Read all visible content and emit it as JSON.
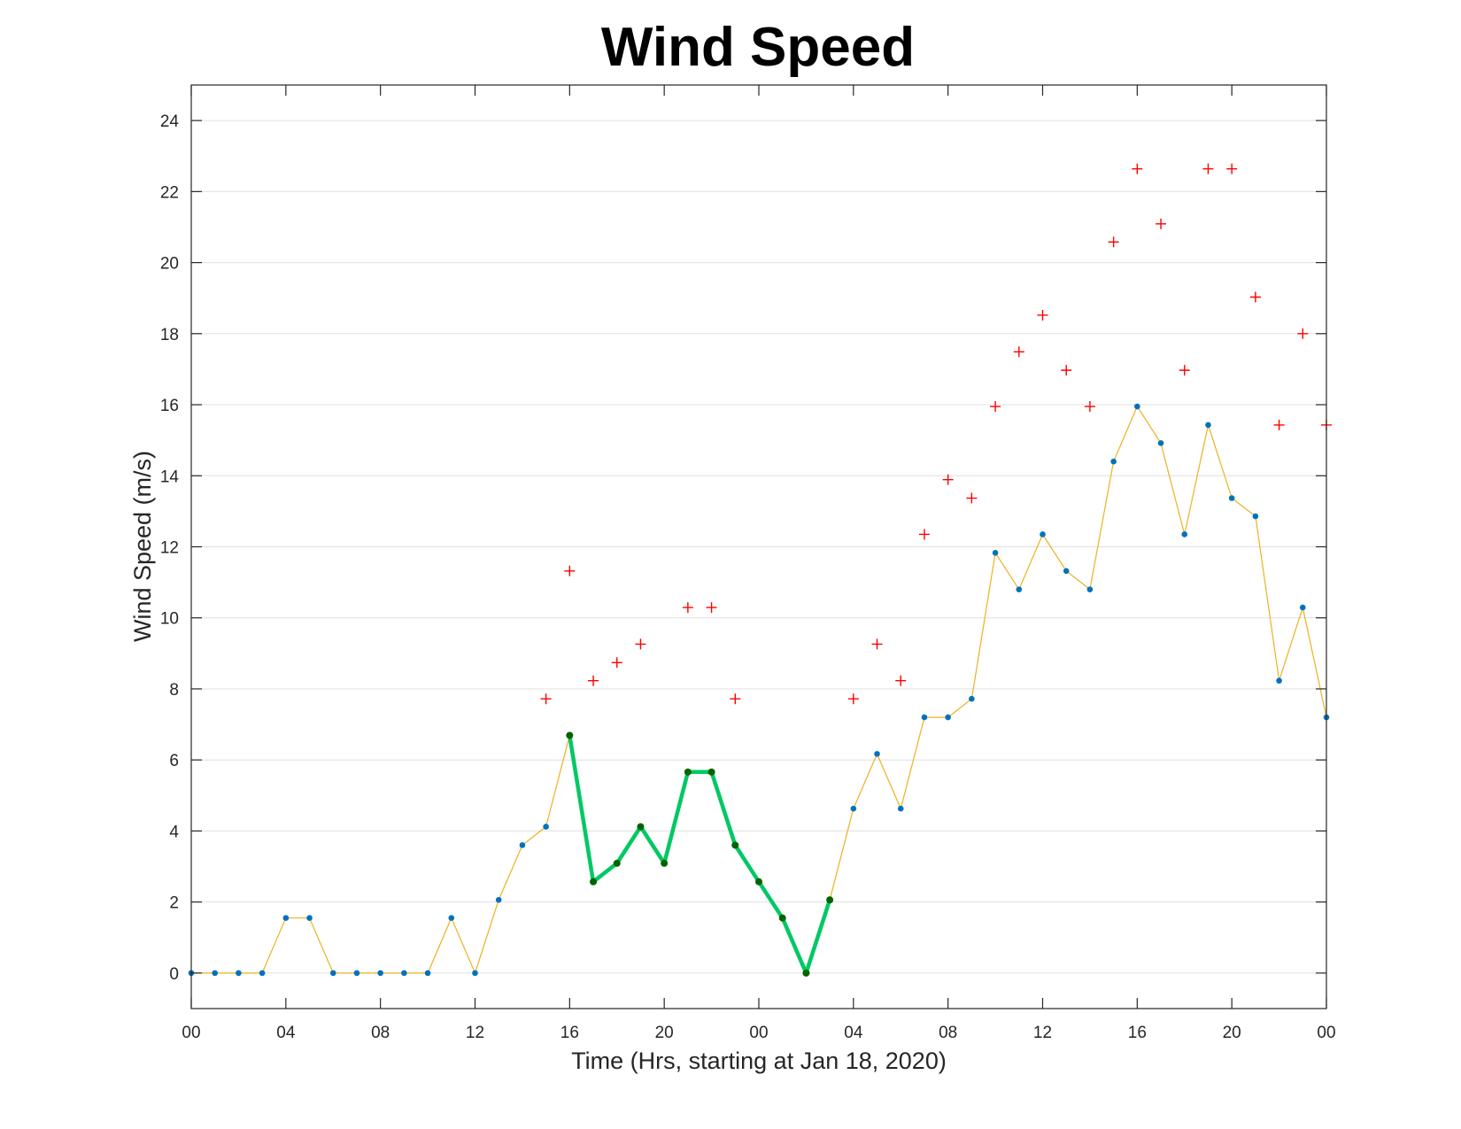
{
  "chart_data": {
    "type": "line",
    "title": "Wind Speed",
    "xlabel": "Time (Hrs, starting at Jan 18, 2020)",
    "ylabel": "Wind Speed (m/s)",
    "xlim": [
      0,
      48
    ],
    "ylim": [
      -1,
      25
    ],
    "grid": "y-major",
    "xticks": [
      {
        "x": 0,
        "label": "00"
      },
      {
        "x": 4,
        "label": "04"
      },
      {
        "x": 8,
        "label": "08"
      },
      {
        "x": 12,
        "label": "12"
      },
      {
        "x": 16,
        "label": "16"
      },
      {
        "x": 20,
        "label": "20"
      },
      {
        "x": 24,
        "label": "00"
      },
      {
        "x": 28,
        "label": "04"
      },
      {
        "x": 32,
        "label": "08"
      },
      {
        "x": 36,
        "label": "12"
      },
      {
        "x": 40,
        "label": "16"
      },
      {
        "x": 44,
        "label": "20"
      },
      {
        "x": 48,
        "label": "00"
      }
    ],
    "yticks": [
      0,
      2,
      4,
      6,
      8,
      10,
      12,
      14,
      16,
      18,
      20,
      22,
      24
    ],
    "colors": {
      "speed_line": "#EDB120",
      "speed_marker": "#0072BD",
      "highlight_line": "#00C864",
      "highlight_marker": "#006400",
      "gust_marker": "#FF0000",
      "grid": "#e0e0e0",
      "axis": "#262626"
    },
    "series": [
      {
        "role": "wind-speed",
        "x": [
          0,
          1,
          2,
          3,
          4,
          5,
          6,
          7,
          8,
          9,
          10,
          11,
          12,
          13,
          14,
          15,
          16,
          17,
          18,
          19,
          20,
          21,
          22,
          23,
          24,
          25,
          26,
          27,
          28,
          29,
          30,
          31,
          32,
          33,
          34,
          35,
          36,
          37,
          38,
          39,
          40,
          41,
          42,
          43,
          44,
          45,
          46,
          47,
          48
        ],
        "y": [
          0,
          0,
          0,
          0,
          1.55,
          1.55,
          0,
          0,
          0,
          0,
          0,
          1.55,
          0,
          2.06,
          3.6,
          4.12,
          6.69,
          2.57,
          3.09,
          4.12,
          3.09,
          5.66,
          5.66,
          3.6,
          2.57,
          1.55,
          0,
          2.06,
          4.63,
          6.17,
          4.63,
          7.2,
          7.2,
          7.72,
          11.83,
          10.8,
          12.35,
          11.32,
          10.8,
          14.4,
          15.95,
          14.92,
          12.35,
          15.43,
          13.37,
          12.86,
          8.23,
          10.29,
          7.2
        ]
      },
      {
        "role": "highlight",
        "x": [
          16,
          17,
          18,
          19,
          20,
          21,
          22,
          23,
          24,
          25,
          26,
          27
        ],
        "y": [
          6.69,
          2.57,
          3.09,
          4.12,
          3.09,
          5.66,
          5.66,
          3.6,
          2.57,
          1.55,
          0,
          2.06
        ]
      },
      {
        "role": "gusts",
        "x": [
          15,
          16,
          17,
          18,
          19,
          21,
          22,
          23,
          28,
          29,
          30,
          31,
          32,
          33,
          34,
          35,
          36,
          37,
          38,
          39,
          40,
          41,
          42,
          43,
          44,
          45,
          46,
          47,
          48
        ],
        "y": [
          7.72,
          11.32,
          8.23,
          8.74,
          9.26,
          10.29,
          10.29,
          7.72,
          7.72,
          9.26,
          8.23,
          12.35,
          13.89,
          13.37,
          15.95,
          17.49,
          18.52,
          16.97,
          15.95,
          20.58,
          22.64,
          21.09,
          16.97,
          22.64,
          22.64,
          19.03,
          15.43,
          18.0,
          15.43
        ]
      }
    ]
  }
}
